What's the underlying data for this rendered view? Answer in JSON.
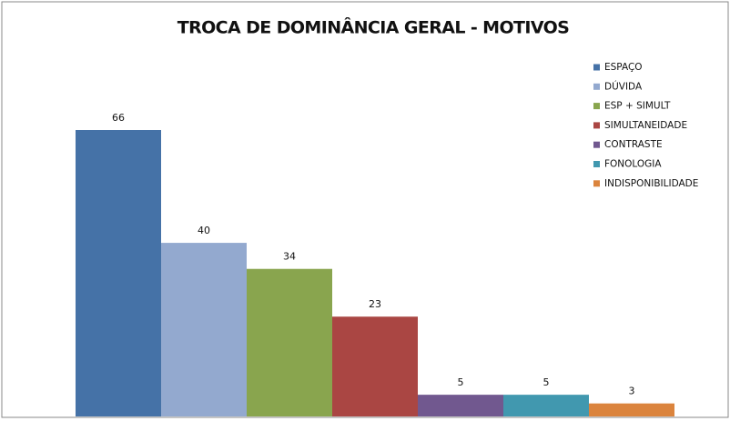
{
  "chart_data": {
    "type": "bar",
    "title": "TROCA DE DOMINÂNCIA GERAL - MOTIVOS",
    "series": [
      {
        "name": "ESPAÇO",
        "color": "#4572a7",
        "values": [
          66
        ]
      },
      {
        "name": "DÚVIDA",
        "color": "#93a9cf",
        "values": [
          40
        ]
      },
      {
        "name": "ESP + SIMULT",
        "color": "#89a54e",
        "values": [
          34
        ]
      },
      {
        "name": "SIMULTANEIDADE",
        "color": "#aa4643",
        "values": [
          23
        ]
      },
      {
        "name": "CONTRASTE",
        "color": "#71588f",
        "values": [
          5
        ]
      },
      {
        "name": "FONOLOGIA",
        "color": "#4198af",
        "values": [
          5
        ]
      },
      {
        "name": "INDISPONIBILIDADE",
        "color": "#db843d",
        "values": [
          3
        ]
      }
    ],
    "legend": "right"
  }
}
